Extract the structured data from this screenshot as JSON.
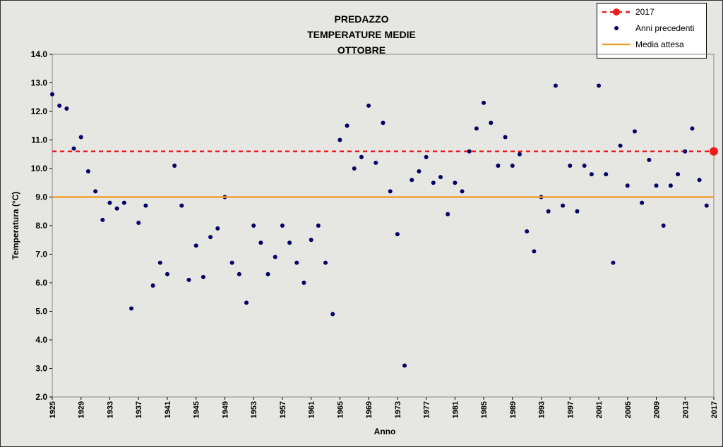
{
  "chart_data": {
    "type": "scatter",
    "title": [
      "PREDAZZO",
      "TEMPERATURE MEDIE",
      "OTTOBRE"
    ],
    "x_label": "Anno",
    "y_label": "Temperatura (°C)",
    "xlim": [
      1925,
      2017
    ],
    "xticks": [
      1925,
      1929,
      1933,
      1937,
      1941,
      1945,
      1949,
      1953,
      1957,
      1961,
      1965,
      1969,
      1973,
      1977,
      1981,
      1985,
      1989,
      1993,
      1997,
      2001,
      2005,
      2009,
      2013,
      2017
    ],
    "ylim": [
      2,
      14
    ],
    "yticks": [
      {
        "value": 2,
        "label": "2.0"
      },
      {
        "value": 3,
        "label": "3.0"
      },
      {
        "value": 4,
        "label": "4.0"
      },
      {
        "value": 5,
        "label": "5.0"
      },
      {
        "value": 6,
        "label": "6.0"
      },
      {
        "value": 7,
        "label": "7.0"
      },
      {
        "value": 8,
        "label": "8.0"
      },
      {
        "value": 9,
        "label": "9.0"
      },
      {
        "value": 10,
        "label": "10.0"
      },
      {
        "value": 11,
        "label": "11.0"
      },
      {
        "value": 12,
        "label": "12.0"
      },
      {
        "value": 13,
        "label": "13.0"
      },
      {
        "value": 14,
        "label": "14.0"
      }
    ],
    "grid": false,
    "legend": "top-right",
    "series": [
      {
        "name": "2017",
        "color": "#ee1c1c",
        "style": "highlight",
        "x": [
          2017
        ],
        "values": [
          10.6
        ]
      },
      {
        "name": "Anni precedenti",
        "color": "#000066",
        "style": "points",
        "x": [
          1925,
          1926,
          1927,
          1928,
          1929,
          1930,
          1931,
          1932,
          1933,
          1934,
          1935,
          1936,
          1937,
          1938,
          1939,
          1940,
          1941,
          1942,
          1943,
          1944,
          1945,
          1946,
          1947,
          1948,
          1949,
          1950,
          1951,
          1952,
          1953,
          1954,
          1955,
          1956,
          1957,
          1958,
          1959,
          1960,
          1961,
          1962,
          1963,
          1964,
          1965,
          1966,
          1967,
          1968,
          1969,
          1970,
          1971,
          1972,
          1973,
          1974,
          1975,
          1976,
          1977,
          1978,
          1979,
          1980,
          1981,
          1982,
          1983,
          1984,
          1985,
          1986,
          1987,
          1988,
          1989,
          1990,
          1991,
          1992,
          1993,
          1994,
          1995,
          1996,
          1997,
          1998,
          1999,
          2000,
          2001,
          2002,
          2003,
          2004,
          2005,
          2006,
          2007,
          2008,
          2009,
          2010,
          2011,
          2012,
          2013,
          2014,
          2015,
          2016
        ],
        "values": [
          12.6,
          12.2,
          12.1,
          10.7,
          11.1,
          9.9,
          9.2,
          8.2,
          8.8,
          8.6,
          8.8,
          5.1,
          8.1,
          8.7,
          5.9,
          6.7,
          6.3,
          10.1,
          8.7,
          6.1,
          7.3,
          6.2,
          7.6,
          7.9,
          9.0,
          6.7,
          6.3,
          5.3,
          8.0,
          7.4,
          6.3,
          6.9,
          8.0,
          7.4,
          6.7,
          6.0,
          7.5,
          8.0,
          6.7,
          4.9,
          11.0,
          11.5,
          10.0,
          10.4,
          12.2,
          10.2,
          11.6,
          9.2,
          7.7,
          3.1,
          9.6,
          9.9,
          10.4,
          9.5,
          9.7,
          8.4,
          9.5,
          9.2,
          10.6,
          11.4,
          12.3,
          11.6,
          10.1,
          11.1,
          10.1,
          10.5,
          7.8,
          7.1,
          9.0,
          8.5,
          12.9,
          8.7,
          10.1,
          8.5,
          10.1,
          9.8,
          12.9,
          9.8,
          6.7,
          10.8,
          9.4,
          11.3,
          8.8,
          10.3,
          9.4,
          8.0,
          9.4,
          9.8,
          10.6,
          11.4,
          9.6,
          8.7
        ]
      },
      {
        "name": "Media attesa",
        "color": "#f0a030",
        "style": "hline",
        "values": [
          9.0
        ]
      }
    ]
  }
}
